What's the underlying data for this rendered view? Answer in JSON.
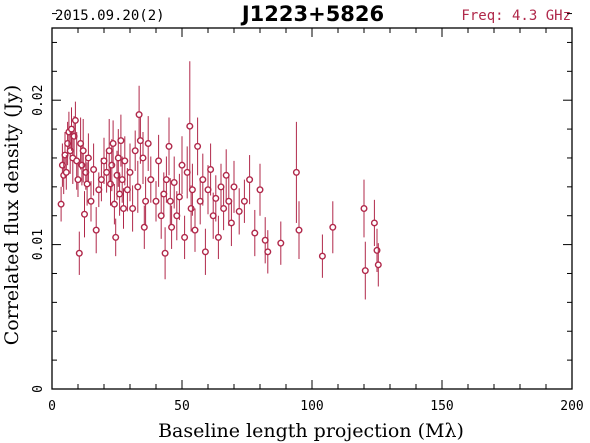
{
  "header": {
    "date": "2015.09.20(2)",
    "source": "J1223+5826",
    "freq": "Freq: 4.3 GHz"
  },
  "colors": {
    "points": "#b0284a",
    "axes": "#000000"
  },
  "chart_data": {
    "type": "scatter",
    "xlabel": "Baseline length projection (Mλ)",
    "ylabel": "Correlated flux density (Jy)",
    "xlim": [
      0,
      200
    ],
    "ylim": [
      0,
      0.025
    ],
    "x_ticks": [
      0,
      50,
      100,
      150,
      200
    ],
    "x_tick_labels": [
      "0",
      "50",
      "100",
      "150",
      "200"
    ],
    "y_ticks": [
      0,
      0.01,
      0.02
    ],
    "y_tick_labels": [
      "0",
      "0.01",
      "0.02"
    ],
    "x_minor_step": 10,
    "y_minor_step": 0.002,
    "grid": false,
    "points": [
      [
        3.5,
        0.0128,
        0.0012
      ],
      [
        4,
        0.0155,
        0.0015
      ],
      [
        4.5,
        0.0148,
        0.0013
      ],
      [
        5,
        0.0162,
        0.0016
      ],
      [
        5.5,
        0.015,
        0.0012
      ],
      [
        6,
        0.017,
        0.0015
      ],
      [
        6.5,
        0.0178,
        0.0014
      ],
      [
        7,
        0.0165,
        0.0016
      ],
      [
        7.5,
        0.018,
        0.0015
      ],
      [
        8,
        0.016,
        0.0018
      ],
      [
        8.5,
        0.0175,
        0.0014
      ],
      [
        9,
        0.0186,
        0.0013
      ],
      [
        9.5,
        0.0158,
        0.002
      ],
      [
        10,
        0.0145,
        0.0012
      ],
      [
        10.5,
        0.0094,
        0.0015
      ],
      [
        11,
        0.017,
        0.0018
      ],
      [
        11.5,
        0.0155,
        0.0014
      ],
      [
        12,
        0.0165,
        0.0022
      ],
      [
        12.5,
        0.0121,
        0.0016
      ],
      [
        13,
        0.015,
        0.0012
      ],
      [
        13.5,
        0.0142,
        0.0015
      ],
      [
        14,
        0.016,
        0.0017
      ],
      [
        15,
        0.013,
        0.0014
      ],
      [
        16,
        0.0152,
        0.0018
      ],
      [
        17,
        0.011,
        0.0016
      ],
      [
        18,
        0.0138,
        0.0012
      ],
      [
        19,
        0.0145,
        0.0015
      ],
      [
        20,
        0.0158,
        0.0016
      ],
      [
        21,
        0.015,
        0.0014
      ],
      [
        22,
        0.0165,
        0.0022
      ],
      [
        22.5,
        0.0142,
        0.0015
      ],
      [
        23,
        0.0155,
        0.0018
      ],
      [
        23.5,
        0.017,
        0.0016
      ],
      [
        24,
        0.0128,
        0.0014
      ],
      [
        24.5,
        0.0105,
        0.0013
      ],
      [
        25,
        0.0148,
        0.0017
      ],
      [
        25.5,
        0.016,
        0.002
      ],
      [
        26,
        0.0135,
        0.0015
      ],
      [
        26.5,
        0.0172,
        0.0018
      ],
      [
        27,
        0.0145,
        0.0016
      ],
      [
        27.5,
        0.0125,
        0.0014
      ],
      [
        28,
        0.0158,
        0.0017
      ],
      [
        29,
        0.0138,
        0.0015
      ],
      [
        30,
        0.015,
        0.002
      ],
      [
        31,
        0.0125,
        0.0016
      ],
      [
        32,
        0.0165,
        0.0014
      ],
      [
        33,
        0.014,
        0.0018
      ],
      [
        33.5,
        0.019,
        0.002
      ],
      [
        34,
        0.0172,
        0.0016
      ],
      [
        35,
        0.016,
        0.0018
      ],
      [
        35.5,
        0.0112,
        0.0015
      ],
      [
        36,
        0.013,
        0.0017
      ],
      [
        37,
        0.017,
        0.0019
      ],
      [
        38,
        0.0145,
        0.0016
      ],
      [
        40,
        0.013,
        0.0014
      ],
      [
        41,
        0.0158,
        0.0018
      ],
      [
        42,
        0.012,
        0.0016
      ],
      [
        43,
        0.0135,
        0.0015
      ],
      [
        43.5,
        0.0094,
        0.0018
      ],
      [
        44,
        0.0145,
        0.0016
      ],
      [
        45,
        0.0168,
        0.002
      ],
      [
        45.5,
        0.013,
        0.0016
      ],
      [
        46,
        0.0112,
        0.0015
      ],
      [
        47,
        0.0143,
        0.0018
      ],
      [
        48,
        0.012,
        0.0017
      ],
      [
        49,
        0.0133,
        0.0016
      ],
      [
        50,
        0.0155,
        0.002
      ],
      [
        51,
        0.0105,
        0.0015
      ],
      [
        52,
        0.015,
        0.0018
      ],
      [
        53,
        0.0182,
        0.0045
      ],
      [
        53.5,
        0.0125,
        0.0016
      ],
      [
        54,
        0.0138,
        0.0018
      ],
      [
        55,
        0.011,
        0.0015
      ],
      [
        56,
        0.0168,
        0.002
      ],
      [
        57,
        0.013,
        0.0016
      ],
      [
        58,
        0.0145,
        0.0018
      ],
      [
        59,
        0.0095,
        0.0016
      ],
      [
        60,
        0.0138,
        0.0017
      ],
      [
        61,
        0.0152,
        0.0018
      ],
      [
        62,
        0.012,
        0.0016
      ],
      [
        63,
        0.0132,
        0.0016
      ],
      [
        64,
        0.0105,
        0.0015
      ],
      [
        65,
        0.014,
        0.0016
      ],
      [
        66,
        0.0125,
        0.0015
      ],
      [
        67,
        0.0148,
        0.0018
      ],
      [
        68,
        0.013,
        0.0017
      ],
      [
        69,
        0.0115,
        0.0016
      ],
      [
        70,
        0.014,
        0.0018
      ],
      [
        72,
        0.0123,
        0.0016
      ],
      [
        74,
        0.013,
        0.0015
      ],
      [
        76,
        0.0145,
        0.0017
      ],
      [
        78,
        0.0108,
        0.0016
      ],
      [
        80,
        0.0138,
        0.0018
      ],
      [
        82,
        0.0103,
        0.0016
      ],
      [
        83,
        0.0095,
        0.0015
      ],
      [
        88,
        0.0101,
        0.0015
      ],
      [
        94,
        0.015,
        0.0035
      ],
      [
        95,
        0.011,
        0.002
      ],
      [
        104,
        0.0092,
        0.0015
      ],
      [
        108,
        0.0112,
        0.0018
      ],
      [
        120,
        0.0125,
        0.002
      ],
      [
        120.5,
        0.0082,
        0.002
      ],
      [
        124,
        0.0115,
        0.0016
      ],
      [
        125,
        0.0096,
        0.0015
      ],
      [
        125.5,
        0.0086,
        0.0015
      ]
    ]
  }
}
